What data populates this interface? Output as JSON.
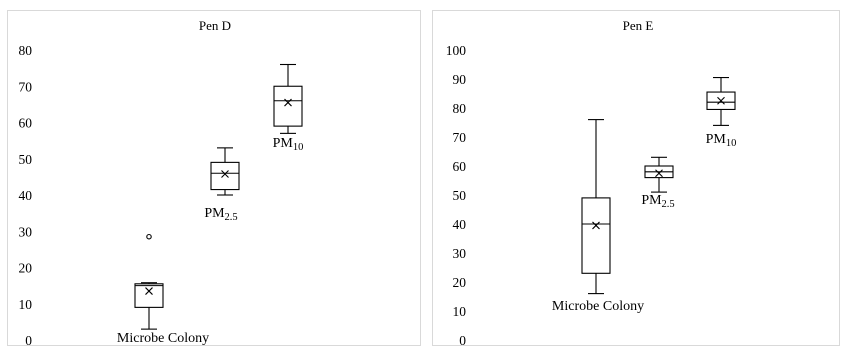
{
  "chart_data": [
    {
      "type": "box",
      "title": "Pen D",
      "ylim": [
        0,
        80
      ],
      "yticks": [
        0,
        10,
        20,
        30,
        40,
        50,
        60,
        70,
        80
      ],
      "grid": false,
      "series": [
        {
          "label": "Microbe Colony",
          "label_main": "Microbe Colony",
          "label_sub": "",
          "min": 3,
          "q1": 9,
          "median": 15,
          "q3": 15.5,
          "max": 15.8,
          "mean": 13.5,
          "outliers": [
            28.5
          ]
        },
        {
          "label": "PM2.5",
          "label_main": "PM",
          "label_sub": "2.5",
          "min": 40,
          "q1": 41.5,
          "median": 46,
          "q3": 49,
          "max": 53,
          "mean": 45.8,
          "outliers": []
        },
        {
          "label": "PM10",
          "label_main": "PM",
          "label_sub": "10",
          "min": 57,
          "q1": 59,
          "median": 66,
          "q3": 70,
          "max": 76,
          "mean": 65.5,
          "outliers": []
        }
      ]
    },
    {
      "type": "box",
      "title": "Pen E",
      "ylim": [
        0,
        100
      ],
      "yticks": [
        0,
        10,
        20,
        30,
        40,
        50,
        60,
        70,
        80,
        90,
        100
      ],
      "grid": false,
      "series": [
        {
          "label": "Microbe Colony",
          "label_main": "Microbe Colony",
          "label_sub": "",
          "min": 16,
          "q1": 23,
          "median": 40,
          "q3": 49,
          "max": 76,
          "mean": 39.5,
          "outliers": []
        },
        {
          "label": "PM2.5",
          "label_main": "PM",
          "label_sub": "2.5",
          "min": 51,
          "q1": 56,
          "median": 58,
          "q3": 60,
          "max": 63,
          "mean": 57.5,
          "outliers": []
        },
        {
          "label": "PM10",
          "label_main": "PM",
          "label_sub": "10",
          "min": 74,
          "q1": 79.5,
          "median": 82,
          "q3": 85.5,
          "max": 90.5,
          "mean": 82.5,
          "outliers": []
        }
      ]
    }
  ]
}
